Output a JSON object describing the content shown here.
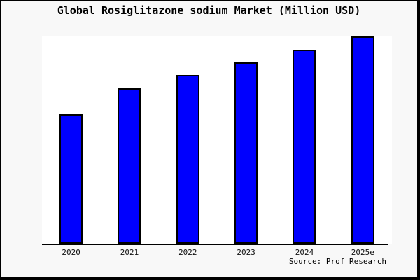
{
  "title": "Global Rosiglitazone sodium Market (Million USD)",
  "source_note": "Source: Prof Research",
  "colors": {
    "bar_fill": "#0000fe",
    "bar_border": "#000000",
    "page_background": "#f8f8f8",
    "plot_background": "#ffffff",
    "axis": "#000000",
    "text": "#000000"
  },
  "chart_data": {
    "type": "bar",
    "title": "Global Rosiglitazone sodium Market (Million USD)",
    "categories": [
      "2020",
      "2021",
      "2022",
      "2023",
      "2024",
      "2025e"
    ],
    "values": [
      62.5,
      74.9,
      81.3,
      87.6,
      93.6,
      100
    ],
    "value_note": "relative scale estimated from bar pixel heights; no y-axis ticks or labels are shown in the chart",
    "ylim": [
      0,
      100
    ],
    "xlabel": "",
    "ylabel": "",
    "grid": false,
    "legend": false,
    "source": "Source: Prof Research"
  }
}
